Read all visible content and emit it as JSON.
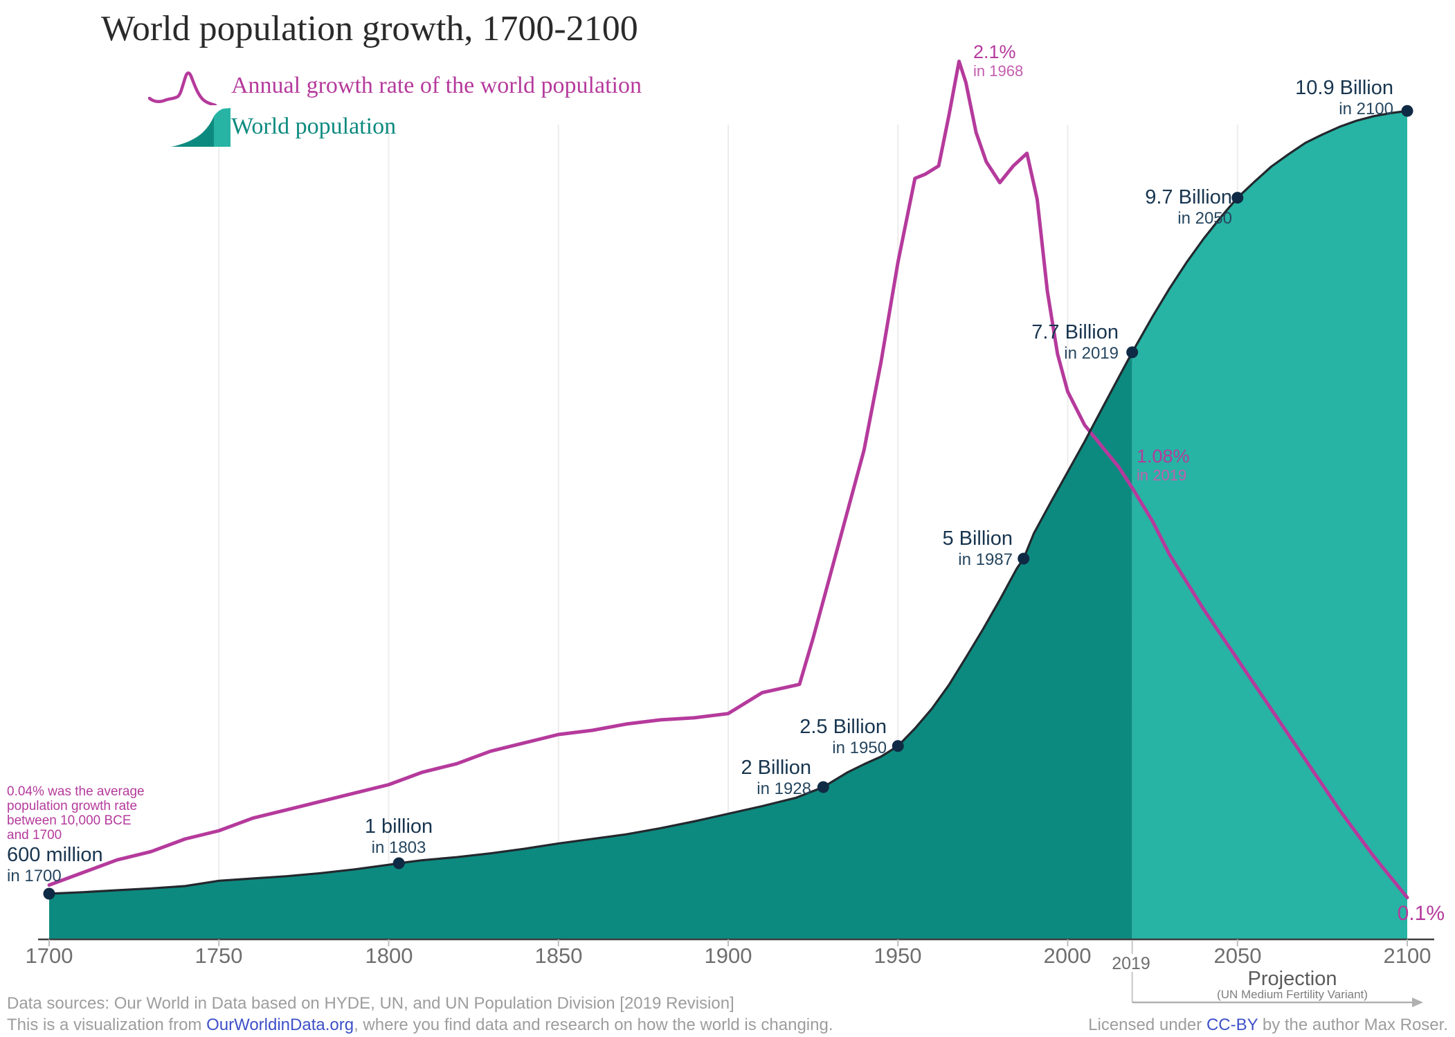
{
  "title": "World population growth, 1700-2100",
  "legend": {
    "growth_label": "Annual growth rate of the world population",
    "population_label": "World population"
  },
  "colors": {
    "area_dark": "#0d8a7f",
    "area_light": "#27b4a4",
    "growth_line": "#b53a9c",
    "population_line": "#23282e",
    "dot": "#0f2a44",
    "annotation_navy": "#18354f",
    "link_blue": "#3d50c8"
  },
  "annotations": {
    "pop": [
      {
        "value": "600 million",
        "year": "in 1700"
      },
      {
        "value": "1 billion",
        "year": "in 1803"
      },
      {
        "value": "2 Billion",
        "year": "in 1928"
      },
      {
        "value": "2.5 Billion",
        "year": "in 1950"
      },
      {
        "value": "5 Billion",
        "year": "in 1987"
      },
      {
        "value": "7.7 Billion",
        "year": "in 2019"
      },
      {
        "value": "9.7 Billion",
        "year": "in 2050"
      },
      {
        "value": "10.9 Billion",
        "year": "in 2100"
      }
    ],
    "growth_peak": {
      "value": "2.1%",
      "year": "in 1968"
    },
    "growth_2019": {
      "value": "1.08%",
      "year": "in 2019"
    },
    "growth_2100": {
      "value": "0.1%"
    },
    "growth_avg": {
      "lines": [
        "0.04% was the average",
        "population growth rate",
        "between 10,000 BCE",
        "and 1700"
      ]
    }
  },
  "x_axis": {
    "ticks": [
      "1700",
      "1750",
      "1800",
      "1850",
      "1900",
      "1950",
      "2000",
      "2050",
      "2100"
    ],
    "special_tick": "2019"
  },
  "projection": {
    "label": "Projection",
    "sublabel": "(UN Medium Fertility Variant)"
  },
  "footer": {
    "sources": "Data sources: Our World in Data based on HYDE, UN, and UN Population Division [2019 Revision]",
    "viz_prefix": "This is a visualization from ",
    "viz_link": "OurWorldinData.org",
    "viz_suffix": ", where you find data and research on how the world is changing.",
    "license_prefix": "Licensed under ",
    "license_link": "CC-BY",
    "license_suffix": " by the author Max Roser."
  },
  "chart_data": {
    "type": "area+line",
    "title": "World population growth, 1700-2100",
    "x_range": [
      1700,
      2100
    ],
    "projection_start": 2019,
    "gridline_years": [
      1750,
      1800,
      1850,
      1900,
      1950,
      2000,
      2050
    ],
    "x_ticks": [
      1700,
      1750,
      1800,
      1850,
      1900,
      1950,
      2000,
      2050,
      2100
    ],
    "population_series": {
      "name": "World population",
      "unit": "billion",
      "points": [
        [
          1700,
          0.6
        ],
        [
          1710,
          0.62
        ],
        [
          1720,
          0.645
        ],
        [
          1730,
          0.67
        ],
        [
          1740,
          0.7
        ],
        [
          1750,
          0.77
        ],
        [
          1760,
          0.8
        ],
        [
          1770,
          0.83
        ],
        [
          1780,
          0.87
        ],
        [
          1790,
          0.92
        ],
        [
          1800,
          0.98
        ],
        [
          1803,
          1.0
        ],
        [
          1810,
          1.04
        ],
        [
          1820,
          1.08
        ],
        [
          1830,
          1.13
        ],
        [
          1840,
          1.19
        ],
        [
          1850,
          1.26
        ],
        [
          1860,
          1.32
        ],
        [
          1870,
          1.38
        ],
        [
          1880,
          1.46
        ],
        [
          1890,
          1.55
        ],
        [
          1900,
          1.65
        ],
        [
          1910,
          1.75
        ],
        [
          1920,
          1.86
        ],
        [
          1928,
          2.0
        ],
        [
          1935,
          2.19
        ],
        [
          1940,
          2.3
        ],
        [
          1945,
          2.4
        ],
        [
          1950,
          2.54
        ],
        [
          1955,
          2.77
        ],
        [
          1960,
          3.03
        ],
        [
          1965,
          3.34
        ],
        [
          1970,
          3.7
        ],
        [
          1975,
          4.07
        ],
        [
          1980,
          4.46
        ],
        [
          1985,
          4.87
        ],
        [
          1987,
          5.0
        ],
        [
          1990,
          5.33
        ],
        [
          1995,
          5.74
        ],
        [
          2000,
          6.14
        ],
        [
          2005,
          6.54
        ],
        [
          2010,
          6.96
        ],
        [
          2015,
          7.38
        ],
        [
          2019,
          7.71
        ],
        [
          2025,
          8.18
        ],
        [
          2030,
          8.55
        ],
        [
          2035,
          8.89
        ],
        [
          2040,
          9.2
        ],
        [
          2045,
          9.48
        ],
        [
          2050,
          9.74
        ],
        [
          2055,
          9.95
        ],
        [
          2060,
          10.15
        ],
        [
          2065,
          10.31
        ],
        [
          2070,
          10.46
        ],
        [
          2075,
          10.57
        ],
        [
          2080,
          10.67
        ],
        [
          2085,
          10.75
        ],
        [
          2090,
          10.81
        ],
        [
          2095,
          10.85
        ],
        [
          2100,
          10.88
        ]
      ]
    },
    "growth_series": {
      "name": "Annual growth rate of the world population",
      "unit": "%",
      "points": [
        [
          1700,
          0.13
        ],
        [
          1710,
          0.16
        ],
        [
          1720,
          0.19
        ],
        [
          1730,
          0.21
        ],
        [
          1740,
          0.24
        ],
        [
          1750,
          0.26
        ],
        [
          1760,
          0.29
        ],
        [
          1770,
          0.31
        ],
        [
          1780,
          0.33
        ],
        [
          1790,
          0.35
        ],
        [
          1800,
          0.37
        ],
        [
          1810,
          0.4
        ],
        [
          1820,
          0.42
        ],
        [
          1830,
          0.45
        ],
        [
          1840,
          0.47
        ],
        [
          1850,
          0.49
        ],
        [
          1860,
          0.5
        ],
        [
          1870,
          0.515
        ],
        [
          1880,
          0.525
        ],
        [
          1890,
          0.53
        ],
        [
          1900,
          0.54
        ],
        [
          1910,
          0.59
        ],
        [
          1921,
          0.61
        ],
        [
          1925,
          0.72
        ],
        [
          1930,
          0.87
        ],
        [
          1935,
          1.02
        ],
        [
          1940,
          1.17
        ],
        [
          1945,
          1.38
        ],
        [
          1950,
          1.62
        ],
        [
          1955,
          1.82
        ],
        [
          1958,
          1.83
        ],
        [
          1962,
          1.85
        ],
        [
          1965,
          1.97
        ],
        [
          1968,
          2.1
        ],
        [
          1970,
          2.05
        ],
        [
          1973,
          1.93
        ],
        [
          1976,
          1.86
        ],
        [
          1980,
          1.81
        ],
        [
          1984,
          1.85
        ],
        [
          1988,
          1.88
        ],
        [
          1991,
          1.77
        ],
        [
          1994,
          1.55
        ],
        [
          1997,
          1.4
        ],
        [
          2000,
          1.31
        ],
        [
          2005,
          1.23
        ],
        [
          2010,
          1.18
        ],
        [
          2015,
          1.13
        ],
        [
          2019,
          1.08
        ],
        [
          2025,
          1.0
        ],
        [
          2030,
          0.92
        ],
        [
          2035,
          0.855
        ],
        [
          2040,
          0.79
        ],
        [
          2045,
          0.73
        ],
        [
          2050,
          0.67
        ],
        [
          2055,
          0.61
        ],
        [
          2060,
          0.55
        ],
        [
          2065,
          0.49
        ],
        [
          2070,
          0.43
        ],
        [
          2075,
          0.37
        ],
        [
          2080,
          0.31
        ],
        [
          2085,
          0.255
        ],
        [
          2090,
          0.2
        ],
        [
          2095,
          0.15
        ],
        [
          2100,
          0.1
        ]
      ]
    },
    "labeled_points": [
      {
        "year": 1700,
        "value": 0.6
      },
      {
        "year": 1803,
        "value": 1.0
      },
      {
        "year": 1928,
        "value": 2.0
      },
      {
        "year": 1950,
        "value": 2.54
      },
      {
        "year": 1987,
        "value": 5.0
      },
      {
        "year": 2019,
        "value": 7.71
      },
      {
        "year": 2050,
        "value": 9.74
      },
      {
        "year": 2100,
        "value": 10.88
      }
    ]
  }
}
